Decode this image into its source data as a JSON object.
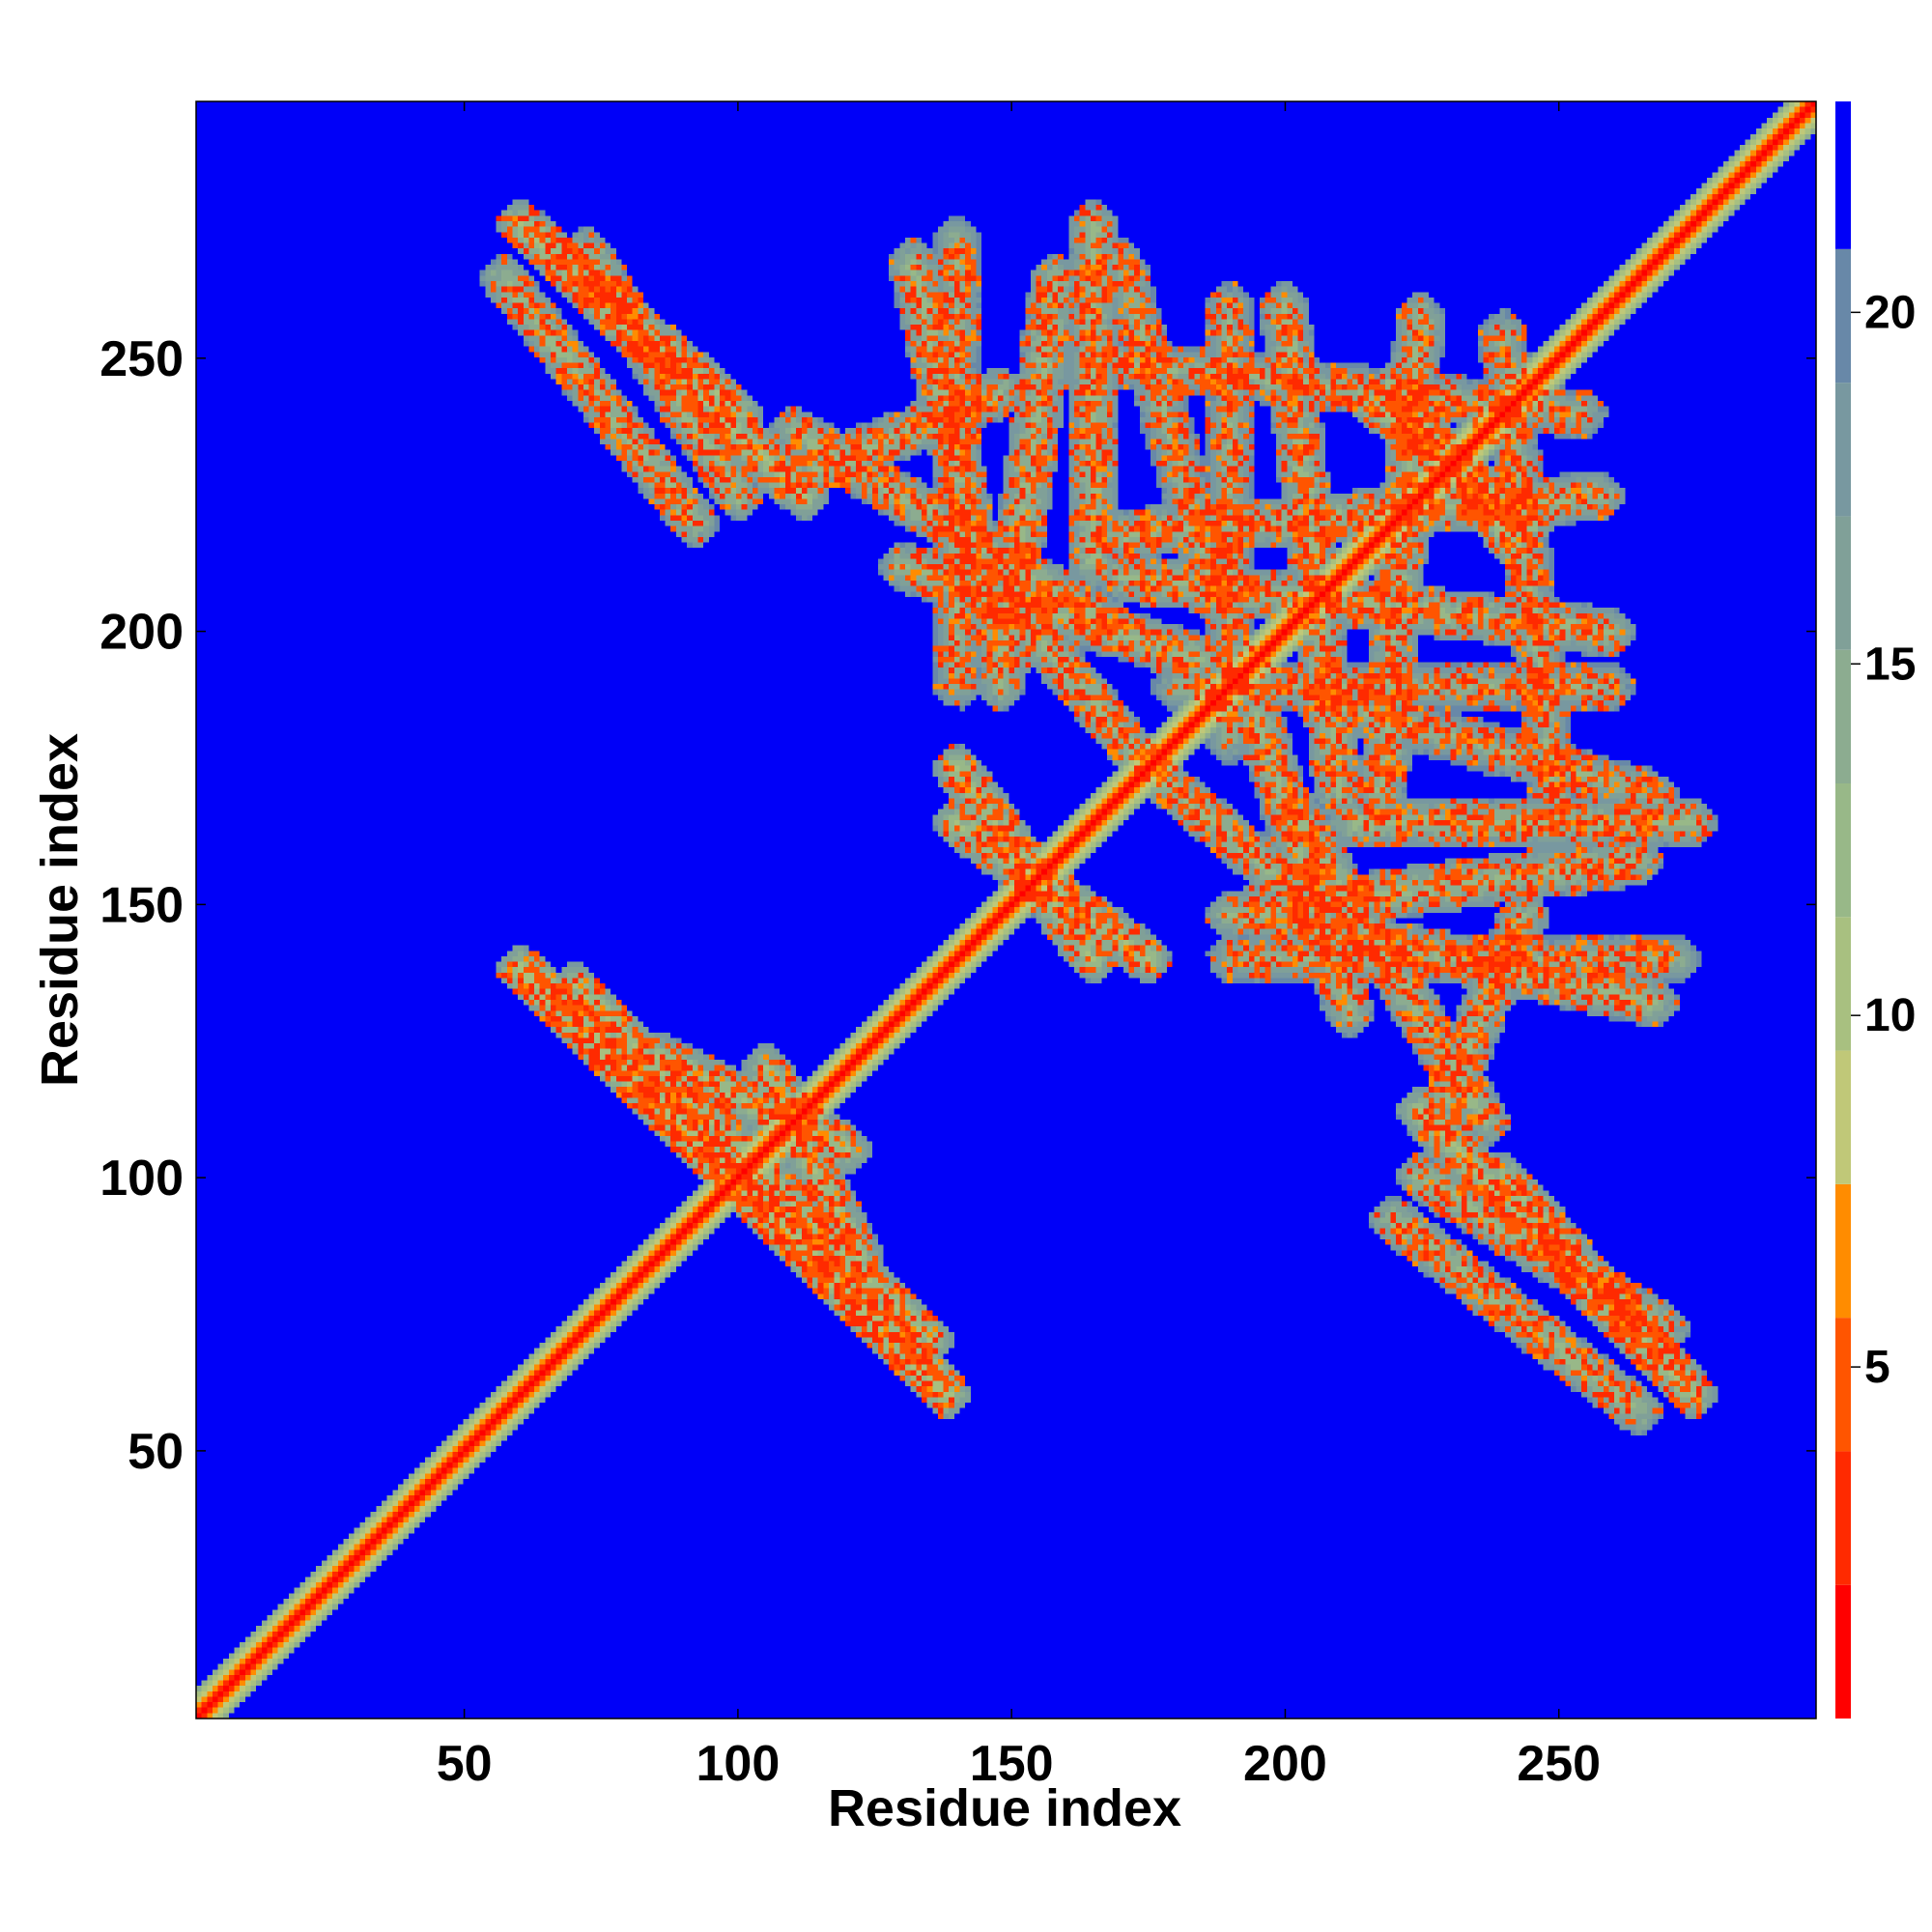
{
  "chart_data": {
    "type": "heatmap",
    "title": "",
    "xlabel": "Residue index",
    "ylabel": "Residue index",
    "xlim": [
      1,
      297
    ],
    "ylim": [
      1,
      297
    ],
    "x_ticks": [
      50,
      100,
      150,
      200,
      250
    ],
    "y_ticks": [
      50,
      100,
      150,
      200,
      250
    ],
    "colorbar": {
      "ticks": [
        5,
        10,
        15,
        20
      ],
      "range": [
        0,
        23
      ],
      "levels": [
        {
          "upto": 1.9,
          "color": "#ff0000"
        },
        {
          "upto": 3.8,
          "color": "#ff2a00"
        },
        {
          "upto": 5.7,
          "color": "#ff5500"
        },
        {
          "upto": 7.6,
          "color": "#ff8c00"
        },
        {
          "upto": 9.5,
          "color": "#c0c878"
        },
        {
          "upto": 11.4,
          "color": "#a8c080"
        },
        {
          "upto": 13.3,
          "color": "#98b888"
        },
        {
          "upto": 15.2,
          "color": "#8cac90"
        },
        {
          "upto": 17.1,
          "color": "#80a098"
        },
        {
          "upto": 19.0,
          "color": "#7898a0"
        },
        {
          "upto": 20.9,
          "color": "#6888a8"
        },
        {
          "upto": 23.0,
          "color": "#0000f8"
        }
      ]
    },
    "description_values": {
      "background_distance": 23,
      "diagonal_distance": 1
    },
    "contact_arms": [
      {
        "from": [
          60,
          275
        ],
        "to": [
          112,
          225
        ],
        "distance": 12
      },
      {
        "from": [
          72,
          270
        ],
        "to": [
          100,
          225
        ],
        "distance": 13
      },
      {
        "from": [
          110,
          237
        ],
        "to": [
          170,
          200
        ],
        "distance": 13
      },
      {
        "from": [
          132,
          268
        ],
        "to": [
          148,
          195
        ],
        "distance": 13
      },
      {
        "from": [
          158,
          265
        ],
        "to": [
          148,
          190
        ],
        "distance": 13
      },
      {
        "from": [
          170,
          268
        ],
        "to": [
          188,
          205
        ],
        "distance": 14
      },
      {
        "from": [
          200,
          260
        ],
        "to": [
          210,
          170
        ],
        "distance": 13
      },
      {
        "from": [
          225,
          258
        ],
        "to": [
          218,
          170
        ],
        "distance": 13
      },
      {
        "from": [
          240,
          255
        ],
        "to": [
          250,
          165
        ],
        "distance": 14
      },
      {
        "from": [
          215,
          243
        ],
        "to": [
          245,
          220
        ],
        "distance": 12
      },
      {
        "from": [
          62,
          137
        ],
        "to": [
          138,
          60
        ],
        "distance": 11
      },
      {
        "from": [
          70,
          135
        ],
        "to": [
          100,
          105
        ],
        "distance": 12
      },
      {
        "from": [
          105,
          120
        ],
        "to": [
          122,
          85
        ],
        "distance": 12
      },
      {
        "from": [
          195,
          185
        ],
        "to": [
          212,
          130
        ],
        "distance": 13
      },
      {
        "from": [
          212,
          165
        ],
        "to": [
          275,
          165
        ],
        "distance": 13
      },
      {
        "from": [
          190,
          140
        ],
        "to": [
          272,
          140
        ],
        "distance": 14
      },
      {
        "from": [
          228,
          110
        ],
        "to": [
          244,
          148
        ],
        "distance": 13
      },
      {
        "from": [
          240,
          100
        ],
        "to": [
          275,
          60
        ],
        "distance": 12
      },
      {
        "from": [
          220,
          92
        ],
        "to": [
          265,
          57
        ],
        "distance": 13
      },
      {
        "from": [
          180,
          190
        ],
        "to": [
          260,
          190
        ],
        "distance": 14
      },
      {
        "from": [
          140,
          165
        ],
        "to": [
          175,
          140
        ],
        "distance": 12
      },
      {
        "from": [
          150,
          205
        ],
        "to": [
          175,
          175
        ],
        "distance": 13
      }
    ]
  }
}
